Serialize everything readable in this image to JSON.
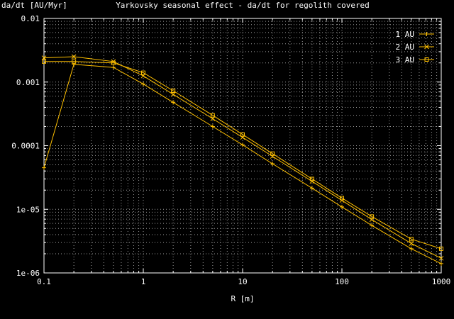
{
  "chart_data": {
    "type": "line",
    "title": "Yarkovsky seasonal effect - da/dt for regolith covered",
    "xlabel": "R [m]",
    "ylabel": "da/dt [AU/Myr]",
    "x_scale": "log",
    "y_scale": "log",
    "xlim": [
      0.1,
      1000
    ],
    "ylim": [
      1e-06,
      0.01
    ],
    "x_ticks": [
      "0.1",
      "1",
      "10",
      "100",
      "1000"
    ],
    "y_ticks": [
      "1e-06",
      "1e-05",
      "0.0001",
      "0.001",
      "0.01"
    ],
    "grid": true,
    "legend_position": "top-right",
    "colors": {
      "background": "#000000",
      "axes": "#ffffff",
      "grid": "#9a9a9a",
      "series": "#ffc000"
    },
    "x": [
      0.1,
      0.2,
      0.5,
      1,
      2,
      5,
      10,
      20,
      50,
      100,
      200,
      500,
      1000
    ],
    "series": [
      {
        "name": "1 AU",
        "marker": "plus",
        "values": [
          4.5e-05,
          0.0019,
          0.0017,
          0.00093,
          0.00048,
          0.0002,
          0.000103,
          5.2e-05,
          2.15e-05,
          1.09e-05,
          5.6e-06,
          2.4e-06,
          1.4e-06
        ]
      },
      {
        "name": "2 AU",
        "marker": "cross",
        "values": [
          0.0024,
          0.0025,
          0.0021,
          0.00125,
          0.00064,
          0.000265,
          0.000135,
          6.8e-05,
          2.75e-05,
          1.38e-05,
          6.9e-06,
          2.9e-06,
          1.7e-06
        ]
      },
      {
        "name": "3 AU",
        "marker": "square",
        "values": [
          0.0021,
          0.0021,
          0.002,
          0.0014,
          0.00073,
          0.0003,
          0.00015,
          7.5e-05,
          3e-05,
          1.5e-05,
          7.7e-06,
          3.4e-06,
          2.4e-06
        ]
      }
    ]
  }
}
